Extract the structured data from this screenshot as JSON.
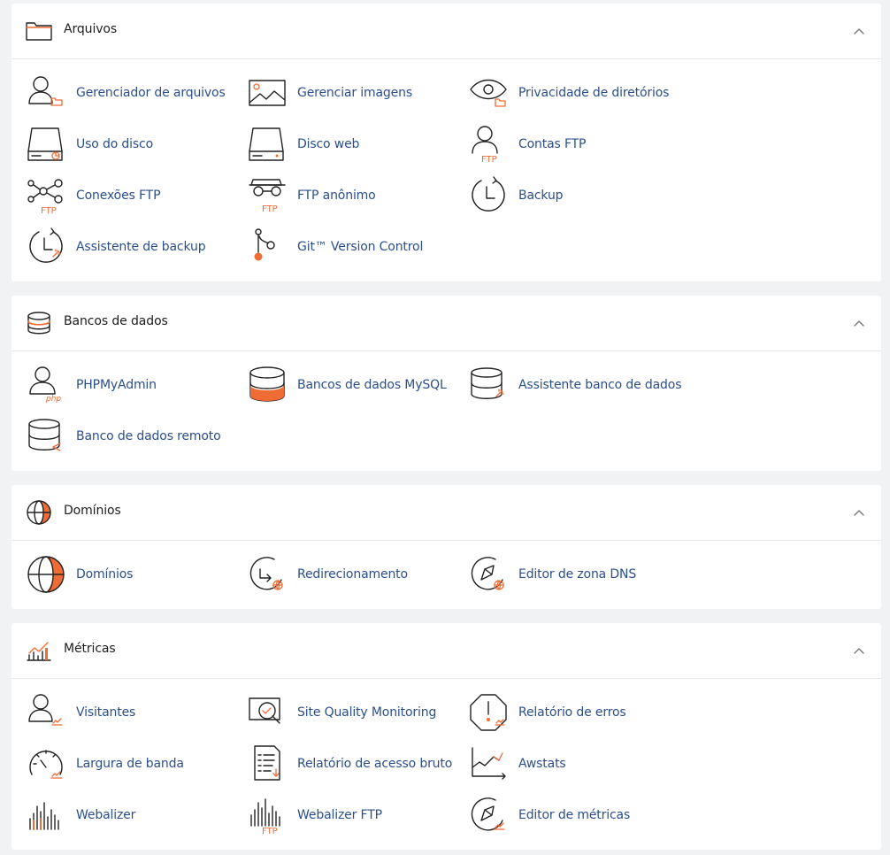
{
  "sections": {
    "files": {
      "title": "Arquivos",
      "items": [
        "Gerenciador de arquivos",
        "Gerenciar imagens",
        "Privacidade de diretórios",
        "Uso do disco",
        "Disco web",
        "Contas FTP",
        "Conexões FTP",
        "FTP anônimo",
        "Backup",
        "Assistente de backup",
        "Git™ Version Control"
      ]
    },
    "databases": {
      "title": "Bancos de dados",
      "items": [
        "PHPMyAdmin",
        "Bancos de dados MySQL",
        "Assistente banco de dados",
        "Banco de dados remoto"
      ]
    },
    "domains": {
      "title": "Domínios",
      "items": [
        "Domínios",
        "Redirecionamento",
        "Editor de zona DNS"
      ]
    },
    "metrics": {
      "title": "Métricas",
      "items": [
        "Visitantes",
        "Site Quality Monitoring",
        "Relatório de erros",
        "Largura de banda",
        "Relatório de acesso bruto",
        "Awstats",
        "Webalizer",
        "Webalizer FTP",
        "Editor de métricas"
      ]
    }
  },
  "icon_labels": {
    "ftp": "FTP",
    "php": "php"
  },
  "colors": {
    "accent": "#ef6c35",
    "link": "#2b4f8c",
    "background": "#f1f2f4"
  }
}
